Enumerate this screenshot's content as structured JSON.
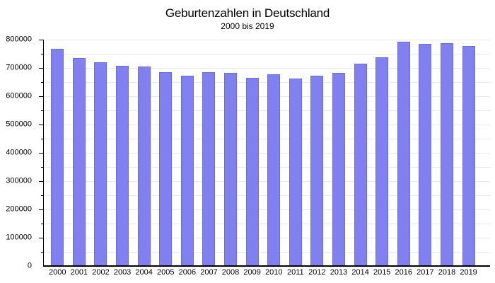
{
  "chart_data": {
    "type": "bar",
    "title": "Geburtenzahlen in Deutschland",
    "subtitle": "2000 bis 2019",
    "xlabel": "",
    "ylabel": "",
    "categories": [
      "2000",
      "2001",
      "2002",
      "2003",
      "2004",
      "2005",
      "2006",
      "2007",
      "2008",
      "2009",
      "2010",
      "2011",
      "2012",
      "2013",
      "2014",
      "2015",
      "2016",
      "2017",
      "2018",
      "2019"
    ],
    "values": [
      766999,
      734475,
      719250,
      706721,
      705622,
      685795,
      672724,
      684862,
      682514,
      665126,
      677947,
      662685,
      673544,
      682069,
      714927,
      737575,
      792131,
      784901,
      787523,
      778090
    ],
    "ylim": [
      0,
      800000
    ],
    "y_ticks": [
      0,
      100000,
      200000,
      300000,
      400000,
      500000,
      600000,
      700000,
      800000
    ],
    "y_minor_step": 50000,
    "y_tick_step": 100000,
    "grid": true,
    "legend": false,
    "bar_color": "#8080f0",
    "bar_border_color": "#6d6dd8",
    "grid_color": "#e9e9e9",
    "axis_color": "#000000",
    "background": "#ffffff"
  }
}
